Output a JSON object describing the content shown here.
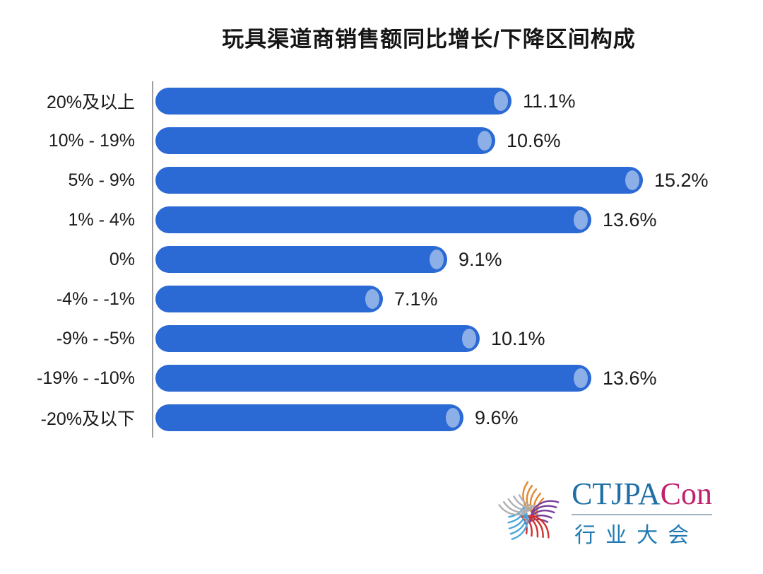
{
  "title": "玩具渠道商销售额同比增长/下降区间构成",
  "chart_data": {
    "type": "bar",
    "orientation": "horizontal",
    "title": "玩具渠道商销售额同比增长/下降区间构成",
    "categories": [
      "20%及以上",
      "10% - 19%",
      "5% - 9%",
      "1% - 4%",
      "0%",
      "-4% - -1%",
      "-9% - -5%",
      "-19% - -10%",
      "-20%及以下"
    ],
    "values": [
      11.1,
      10.6,
      15.2,
      13.6,
      9.1,
      7.1,
      10.1,
      13.6,
      9.6
    ],
    "value_labels": [
      "11.1%",
      "10.6%",
      "15.2%",
      "13.6%",
      "9.1%",
      "7.1%",
      "10.1%",
      "13.6%",
      "9.6%"
    ],
    "xlabel": "",
    "ylabel": "",
    "xlim": [
      0,
      16
    ],
    "grid": false,
    "legend": false,
    "bar_color": "#2B69D4",
    "bar_cap_color": "#8CAFE8",
    "axis_line_color": "#9E9E9E",
    "label_color": "#1A1A1A"
  },
  "logo": {
    "brand_primary": "CTJPA",
    "brand_accent": "Con",
    "subtitle": "行业大会",
    "primary_color": "#1E6FA5",
    "accent_color": "#C0206E",
    "subtitle_color": "#1F7AB4",
    "icon": "pinwheel-star-icon",
    "icon_colors": [
      "#E5882D",
      "#7A3F99",
      "#D2302C",
      "#4AA7DB",
      "#B0B0B3"
    ]
  }
}
